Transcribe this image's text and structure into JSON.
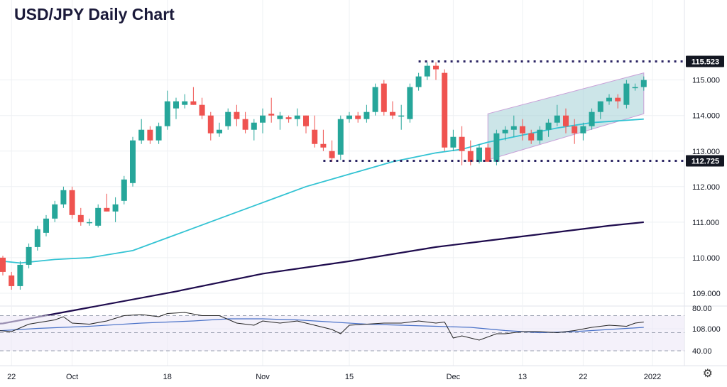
{
  "title": "USD/JPY Daily Chart",
  "colors": {
    "up": "#26a69a",
    "down": "#ef5350",
    "ma_short": "#33c3d3",
    "ma_long": "#1e0b4d",
    "rsi": "#222222",
    "rsi_ma": "#4a72c8",
    "channel_fill": "#a3d0d6",
    "channel_line": "#c9a0d8",
    "level_line": "#2b2563",
    "label_bg": "#131722"
  },
  "levels": {
    "high": "115.523",
    "low": "112.725"
  },
  "settings_icon": "gear-icon",
  "chart_data": {
    "type": "candlestick",
    "y_ticks": [
      "115.000",
      "114.000",
      "113.000",
      "112.000",
      "111.000",
      "110.000",
      "109.000",
      "108.000"
    ],
    "ylim": [
      107.6,
      115.8
    ],
    "x_ticks": [
      {
        "label": "22",
        "bar": 1
      },
      {
        "label": "Oct",
        "bar": 8
      },
      {
        "label": "18",
        "bar": 19
      },
      {
        "label": "Nov",
        "bar": 30
      },
      {
        "label": "15",
        "bar": 40
      },
      {
        "label": "Dec",
        "bar": 52
      },
      {
        "label": "13",
        "bar": 60
      },
      {
        "label": "22",
        "bar": 67
      },
      {
        "label": "2022",
        "bar": 75
      }
    ],
    "ohlc": [
      [
        110.0,
        110.05,
        109.5,
        109.6
      ],
      [
        109.5,
        109.6,
        109.1,
        109.2
      ],
      [
        109.2,
        109.9,
        109.1,
        109.8
      ],
      [
        109.8,
        110.4,
        109.7,
        110.3
      ],
      [
        110.3,
        110.9,
        110.2,
        110.8
      ],
      [
        110.7,
        111.2,
        110.6,
        111.1
      ],
      [
        111.1,
        111.6,
        111.0,
        111.5
      ],
      [
        111.5,
        112.0,
        111.4,
        111.9
      ],
      [
        111.9,
        112.0,
        111.1,
        111.2
      ],
      [
        111.2,
        111.4,
        110.9,
        111.0
      ],
      [
        111.0,
        111.1,
        110.9,
        111.0
      ],
      [
        110.9,
        111.5,
        110.85,
        111.4
      ],
      [
        111.4,
        111.8,
        111.3,
        111.3
      ],
      [
        111.3,
        111.7,
        111.0,
        111.5
      ],
      [
        111.6,
        112.3,
        111.5,
        112.2
      ],
      [
        112.1,
        113.4,
        112.0,
        113.3
      ],
      [
        113.3,
        113.9,
        113.2,
        113.6
      ],
      [
        113.6,
        113.7,
        113.2,
        113.3
      ],
      [
        113.3,
        113.8,
        113.2,
        113.7
      ],
      [
        113.7,
        114.7,
        113.6,
        114.4
      ],
      [
        114.2,
        114.5,
        113.9,
        114.4
      ],
      [
        114.3,
        114.6,
        114.2,
        114.4
      ],
      [
        114.4,
        114.8,
        114.3,
        114.3
      ],
      [
        114.3,
        114.5,
        113.9,
        114.0
      ],
      [
        114.0,
        114.1,
        113.3,
        113.5
      ],
      [
        113.5,
        113.8,
        113.4,
        113.6
      ],
      [
        113.7,
        114.2,
        113.6,
        114.1
      ],
      [
        114.1,
        114.3,
        113.7,
        113.9
      ],
      [
        113.9,
        114.1,
        113.5,
        113.6
      ],
      [
        113.6,
        113.9,
        113.3,
        113.8
      ],
      [
        113.8,
        114.2,
        113.5,
        114.0
      ],
      [
        114.05,
        114.5,
        113.8,
        114.0
      ],
      [
        113.9,
        114.1,
        113.6,
        114.0
      ],
      [
        113.95,
        114.0,
        113.8,
        113.9
      ],
      [
        113.9,
        114.2,
        113.7,
        114.0
      ],
      [
        114.0,
        114.0,
        113.5,
        113.7
      ],
      [
        113.6,
        114.0,
        113.1,
        113.2
      ],
      [
        113.2,
        113.6,
        113.0,
        113.1
      ],
      [
        113.0,
        113.3,
        112.7,
        112.8
      ],
      [
        112.9,
        114.0,
        112.75,
        113.9
      ],
      [
        113.9,
        114.1,
        113.8,
        114.0
      ],
      [
        114.0,
        114.1,
        113.8,
        113.9
      ],
      [
        113.9,
        114.3,
        113.8,
        114.1
      ],
      [
        114.1,
        114.9,
        114.0,
        114.8
      ],
      [
        114.9,
        115.0,
        114.0,
        114.1
      ],
      [
        114.1,
        114.4,
        113.9,
        114.0
      ],
      [
        114.0,
        114.3,
        113.6,
        114.0
      ],
      [
        113.9,
        114.9,
        113.8,
        114.8
      ],
      [
        114.8,
        115.2,
        114.7,
        115.1
      ],
      [
        115.1,
        115.5,
        115.0,
        115.4
      ],
      [
        115.4,
        115.5,
        115.0,
        115.3
      ],
      [
        115.2,
        115.3,
        113.0,
        113.1
      ],
      [
        113.1,
        113.6,
        113.0,
        113.4
      ],
      [
        113.4,
        113.7,
        112.6,
        113.0
      ],
      [
        113.0,
        113.3,
        112.6,
        112.7
      ],
      [
        112.7,
        113.2,
        112.65,
        113.1
      ],
      [
        113.1,
        113.2,
        112.7,
        112.7
      ],
      [
        112.7,
        113.6,
        112.6,
        113.5
      ],
      [
        113.5,
        113.7,
        113.3,
        113.6
      ],
      [
        113.6,
        114.0,
        113.4,
        113.7
      ],
      [
        113.7,
        113.9,
        113.3,
        113.5
      ],
      [
        113.5,
        113.6,
        113.2,
        113.3
      ],
      [
        113.3,
        113.7,
        113.2,
        113.6
      ],
      [
        113.6,
        113.9,
        113.4,
        113.8
      ],
      [
        113.8,
        114.3,
        113.7,
        114.0
      ],
      [
        114.0,
        114.2,
        113.5,
        113.7
      ],
      [
        113.7,
        113.9,
        113.2,
        113.5
      ],
      [
        113.5,
        113.8,
        113.3,
        113.7
      ],
      [
        113.7,
        114.2,
        113.6,
        114.1
      ],
      [
        114.1,
        114.4,
        113.9,
        114.4
      ],
      [
        114.4,
        114.6,
        114.3,
        114.5
      ],
      [
        114.5,
        114.6,
        114.2,
        114.4
      ],
      [
        114.3,
        115.0,
        114.2,
        114.9
      ],
      [
        114.8,
        114.9,
        114.7,
        114.8
      ],
      [
        114.8,
        115.1,
        114.7,
        115.0
      ]
    ],
    "ma_short": [
      [
        0,
        109.9
      ],
      [
        2,
        109.85
      ],
      [
        6,
        109.95
      ],
      [
        10,
        110.0
      ],
      [
        15,
        110.2
      ],
      [
        20,
        110.65
      ],
      [
        25,
        111.1
      ],
      [
        30,
        111.55
      ],
      [
        35,
        112.0
      ],
      [
        40,
        112.35
      ],
      [
        45,
        112.7
      ],
      [
        50,
        112.95
      ],
      [
        53,
        113.05
      ],
      [
        56,
        113.25
      ],
      [
        60,
        113.45
      ],
      [
        64,
        113.65
      ],
      [
        68,
        113.8
      ],
      [
        74,
        113.9
      ]
    ],
    "ma_long": [
      [
        -3,
        108.1
      ],
      [
        0,
        108.15
      ],
      [
        10,
        108.6
      ],
      [
        20,
        109.05
      ],
      [
        30,
        109.55
      ],
      [
        40,
        109.9
      ],
      [
        50,
        110.3
      ],
      [
        55,
        110.45
      ],
      [
        60,
        110.6
      ],
      [
        65,
        110.75
      ],
      [
        70,
        110.9
      ],
      [
        74,
        111.0
      ]
    ],
    "rsi_ticks": [
      "80.00",
      "40.00"
    ],
    "rsi_ylim": [
      35,
      82
    ],
    "rsi_bands": [
      73,
      57,
      40
    ],
    "rsi": [
      [
        -2,
        60
      ],
      [
        1,
        58
      ],
      [
        3,
        65
      ],
      [
        6,
        69
      ],
      [
        7,
        72
      ],
      [
        8,
        66
      ],
      [
        10,
        65
      ],
      [
        12,
        68
      ],
      [
        14,
        73
      ],
      [
        16,
        74
      ],
      [
        18,
        72
      ],
      [
        19,
        75
      ],
      [
        21,
        76
      ],
      [
        23,
        73
      ],
      [
        25,
        73
      ],
      [
        27,
        66
      ],
      [
        29,
        64
      ],
      [
        30,
        68
      ],
      [
        32,
        66
      ],
      [
        34,
        68
      ],
      [
        36,
        64
      ],
      [
        38,
        60
      ],
      [
        39,
        56
      ],
      [
        40,
        64
      ],
      [
        42,
        65
      ],
      [
        44,
        66
      ],
      [
        46,
        66
      ],
      [
        48,
        68
      ],
      [
        50,
        66
      ],
      [
        51,
        67
      ],
      [
        52,
        52
      ],
      [
        53,
        54
      ],
      [
        55,
        50
      ],
      [
        57,
        56
      ],
      [
        58,
        56
      ],
      [
        60,
        58
      ],
      [
        62,
        58
      ],
      [
        64,
        57
      ],
      [
        66,
        59
      ],
      [
        68,
        62
      ],
      [
        70,
        64
      ],
      [
        72,
        63
      ],
      [
        73,
        66
      ],
      [
        74,
        67
      ]
    ],
    "rsi_ma": [
      [
        -2,
        58
      ],
      [
        4,
        61
      ],
      [
        10,
        63
      ],
      [
        16,
        66
      ],
      [
        22,
        68
      ],
      [
        26,
        70
      ],
      [
        30,
        70
      ],
      [
        34,
        69
      ],
      [
        38,
        67
      ],
      [
        42,
        65
      ],
      [
        46,
        64
      ],
      [
        50,
        63
      ],
      [
        54,
        62
      ],
      [
        58,
        59
      ],
      [
        62,
        57
      ],
      [
        66,
        58
      ],
      [
        70,
        60
      ],
      [
        74,
        62
      ]
    ]
  }
}
